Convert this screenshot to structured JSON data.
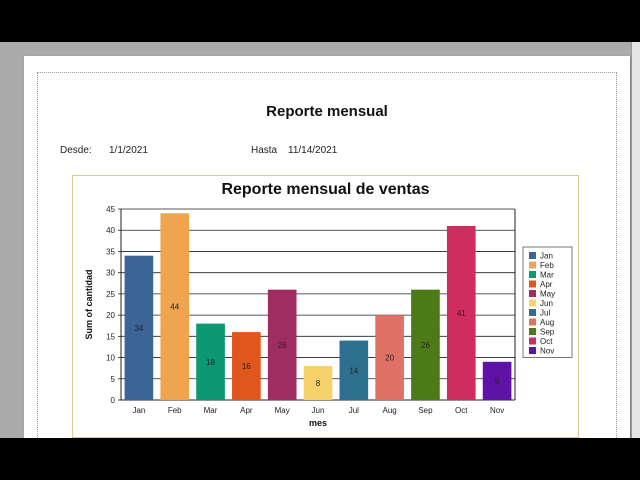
{
  "report": {
    "title": "Reporte mensual",
    "desde_label": "Desde:",
    "desde_value": "1/1/2021",
    "hasta_label": "Hasta",
    "hasta_value": "11/14/2021"
  },
  "chart_data": {
    "type": "bar",
    "title": "Reporte mensual de ventas",
    "xlabel": "mes",
    "ylabel": "Sum of cantidad",
    "ylim": [
      0,
      45
    ],
    "yticks": [
      0,
      5,
      10,
      15,
      20,
      25,
      30,
      35,
      40,
      45
    ],
    "grid": true,
    "legend_position": "right",
    "categories": [
      "Jan",
      "Feb",
      "Mar",
      "Apr",
      "May",
      "Jun",
      "Jul",
      "Aug",
      "Sep",
      "Oct",
      "Nov"
    ],
    "values": [
      34,
      44,
      18,
      16,
      26,
      8,
      14,
      20,
      26,
      41,
      9
    ],
    "data_labels": [
      "34",
      "44",
      "18",
      "16",
      "26",
      "8",
      "14",
      "20",
      "26",
      "41",
      "9"
    ],
    "colors": [
      "#3d6497",
      "#f0a450",
      "#0c9873",
      "#e0561c",
      "#9f2d61",
      "#f7d169",
      "#2d6f8e",
      "#e07167",
      "#4b7a17",
      "#cf2c5f",
      "#6011a8"
    ]
  }
}
